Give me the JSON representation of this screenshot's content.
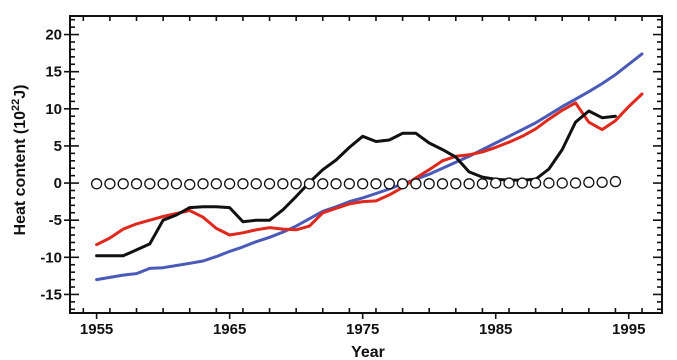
{
  "chart_data": {
    "type": "line",
    "title": "",
    "xlabel": "Year",
    "ylabel_main": "Heat content (10",
    "ylabel_exp": "22",
    "ylabel_unit": "J)",
    "xlim": [
      1953,
      1997.5
    ],
    "ylim": [
      -17.5,
      22.5
    ],
    "x_ticks": [
      1955,
      1965,
      1975,
      1985,
      1995
    ],
    "y_ticks": [
      -15,
      -10,
      -5,
      0,
      5,
      10,
      15,
      20
    ],
    "grid": false,
    "series": [
      {
        "color": "#4a5ab8",
        "marker": "none",
        "x": [
          1955,
          1956,
          1957,
          1958,
          1959,
          1960,
          1961,
          1962,
          1963,
          1964,
          1965,
          1966,
          1967,
          1968,
          1969,
          1970,
          1971,
          1972,
          1973,
          1974,
          1975,
          1976,
          1977,
          1978,
          1979,
          1980,
          1981,
          1982,
          1983,
          1984,
          1985,
          1986,
          1987,
          1988,
          1989,
          1990,
          1991,
          1992,
          1993,
          1994,
          1995,
          1996
        ],
        "y": [
          -13.0,
          -12.7,
          -12.4,
          -12.2,
          -11.5,
          -11.4,
          -11.1,
          -10.8,
          -10.5,
          -9.9,
          -9.2,
          -8.6,
          -7.9,
          -7.3,
          -6.6,
          -5.8,
          -4.8,
          -3.8,
          -3.2,
          -2.5,
          -2.0,
          -1.4,
          -0.8,
          -0.1,
          0.5,
          1.2,
          2.0,
          2.8,
          3.6,
          4.5,
          5.4,
          6.3,
          7.2,
          8.1,
          9.2,
          10.3,
          11.3,
          12.3,
          13.4,
          14.6,
          16.0,
          17.4
        ]
      },
      {
        "color": "#e0281c",
        "marker": "none",
        "x": [
          1955,
          1956,
          1957,
          1958,
          1959,
          1960,
          1961,
          1962,
          1963,
          1964,
          1965,
          1966,
          1967,
          1968,
          1969,
          1970,
          1971,
          1972,
          1973,
          1974,
          1975,
          1976,
          1977,
          1978,
          1979,
          1980,
          1981,
          1982,
          1983,
          1984,
          1985,
          1986,
          1987,
          1988,
          1989,
          1990,
          1991,
          1992,
          1993,
          1994,
          1995,
          1996
        ],
        "y": [
          -8.3,
          -7.4,
          -6.2,
          -5.5,
          -5.0,
          -4.5,
          -4.1,
          -3.7,
          -4.6,
          -6.1,
          -7.0,
          -6.7,
          -6.3,
          -6.0,
          -6.2,
          -6.3,
          -5.8,
          -4.0,
          -3.4,
          -2.8,
          -2.5,
          -2.4,
          -1.6,
          -0.6,
          0.7,
          1.8,
          3.0,
          3.6,
          3.8,
          4.2,
          4.8,
          5.5,
          6.3,
          7.3,
          8.6,
          9.8,
          10.8,
          8.2,
          7.2,
          8.4,
          10.3,
          12.0
        ]
      },
      {
        "color": "#111111",
        "marker": "none",
        "x": [
          1955,
          1956,
          1957,
          1958,
          1959,
          1960,
          1961,
          1962,
          1963,
          1964,
          1965,
          1966,
          1967,
          1968,
          1969,
          1970,
          1971,
          1972,
          1973,
          1974,
          1975,
          1976,
          1977,
          1978,
          1979,
          1980,
          1981,
          1982,
          1983,
          1984,
          1985,
          1986,
          1987,
          1988,
          1989,
          1990,
          1991,
          1992,
          1993,
          1994
        ],
        "y": [
          -9.8,
          -9.8,
          -9.8,
          -9.0,
          -8.2,
          -5.0,
          -4.3,
          -3.3,
          -3.2,
          -3.2,
          -3.3,
          -5.2,
          -5.0,
          -5.0,
          -3.6,
          -1.8,
          0.1,
          1.8,
          3.1,
          4.8,
          6.3,
          5.6,
          5.8,
          6.7,
          6.7,
          5.4,
          4.5,
          3.5,
          1.5,
          0.8,
          0.5,
          0.4,
          0.4,
          0.5,
          1.9,
          4.5,
          8.2,
          9.7,
          8.8,
          9.0
        ]
      },
      {
        "color": "#111111",
        "marker": "circle",
        "x": [
          1955,
          1956,
          1957,
          1958,
          1959,
          1960,
          1961,
          1962,
          1963,
          1964,
          1965,
          1966,
          1967,
          1968,
          1969,
          1970,
          1971,
          1972,
          1973,
          1974,
          1975,
          1976,
          1977,
          1978,
          1979,
          1980,
          1981,
          1982,
          1983,
          1984,
          1985,
          1986,
          1987,
          1988,
          1989,
          1990,
          1991,
          1992,
          1993,
          1994
        ],
        "y": [
          -0.1,
          -0.1,
          -0.1,
          -0.1,
          -0.1,
          -0.1,
          -0.1,
          -0.2,
          -0.1,
          -0.1,
          -0.1,
          -0.1,
          -0.1,
          -0.1,
          -0.1,
          -0.1,
          -0.1,
          -0.1,
          -0.1,
          -0.1,
          -0.1,
          -0.1,
          -0.1,
          -0.1,
          -0.1,
          -0.1,
          -0.1,
          -0.1,
          -0.1,
          -0.1,
          0.0,
          0.0,
          0.0,
          0.0,
          0.0,
          0.0,
          0.0,
          0.1,
          0.1,
          0.2
        ]
      }
    ]
  }
}
